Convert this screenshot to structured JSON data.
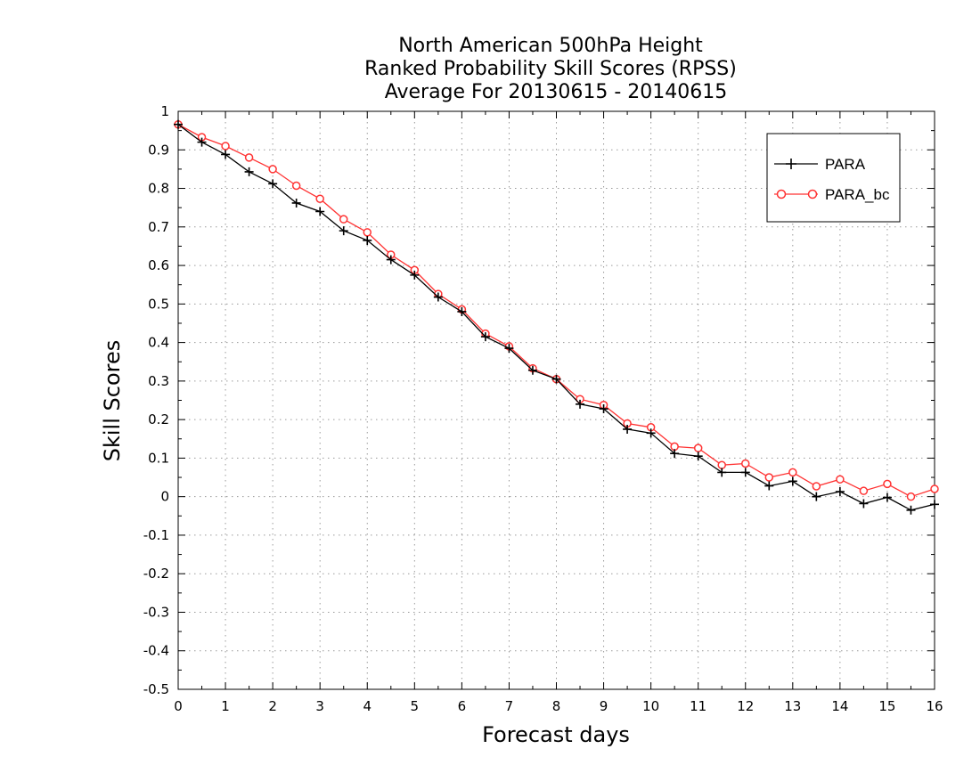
{
  "chart_data": {
    "type": "line",
    "title_lines": [
      "North American 500hPa Height",
      "Ranked Probability Skill Scores (RPSS)",
      "Average For 20130615 - 20140615"
    ],
    "xlabel": "Forecast days",
    "ylabel": "Skill Scores",
    "xlim": [
      0,
      16
    ],
    "ylim": [
      -0.5,
      1
    ],
    "xticks": [
      "0",
      "1",
      "2",
      "3",
      "4",
      "5",
      "6",
      "7",
      "8",
      "9",
      "10",
      "11",
      "12",
      "13",
      "14",
      "15",
      "16"
    ],
    "yticks": [
      "-0.5",
      "-0.4",
      "-0.3",
      "-0.2",
      "-0.1",
      "0",
      "0.1",
      "0.2",
      "0.3",
      "0.4",
      "0.5",
      "0.6",
      "0.7",
      "0.8",
      "0.9",
      "1"
    ],
    "grid": true,
    "legend_position": "top-right",
    "x": [
      0,
      0.5,
      1,
      1.5,
      2,
      2.5,
      3,
      3.5,
      4,
      4.5,
      5,
      5.5,
      6,
      6.5,
      7,
      7.5,
      8,
      8.5,
      9,
      9.5,
      10,
      10.5,
      11,
      11.5,
      12,
      12.5,
      13,
      13.5,
      14,
      14.5,
      15,
      15.5,
      16
    ],
    "series": [
      {
        "name": "PARA",
        "color": "#000000",
        "marker": "plus",
        "values": [
          0.966,
          0.92,
          0.888,
          0.843,
          0.812,
          0.762,
          0.74,
          0.69,
          0.665,
          0.615,
          0.575,
          0.518,
          0.48,
          0.415,
          0.385,
          0.328,
          0.305,
          0.24,
          0.228,
          0.175,
          0.165,
          0.112,
          0.105,
          0.063,
          0.063,
          0.028,
          0.04,
          0.0,
          0.013,
          -0.018,
          -0.002,
          -0.035,
          -0.02
        ]
      },
      {
        "name": "PARA_bc",
        "color": "#ff3333",
        "marker": "circle",
        "values": [
          0.966,
          0.933,
          0.91,
          0.88,
          0.85,
          0.807,
          0.773,
          0.72,
          0.686,
          0.628,
          0.588,
          0.526,
          0.486,
          0.423,
          0.39,
          0.333,
          0.305,
          0.253,
          0.238,
          0.19,
          0.18,
          0.13,
          0.126,
          0.082,
          0.086,
          0.05,
          0.063,
          0.027,
          0.045,
          0.015,
          0.033,
          0.0,
          0.02
        ]
      }
    ]
  }
}
